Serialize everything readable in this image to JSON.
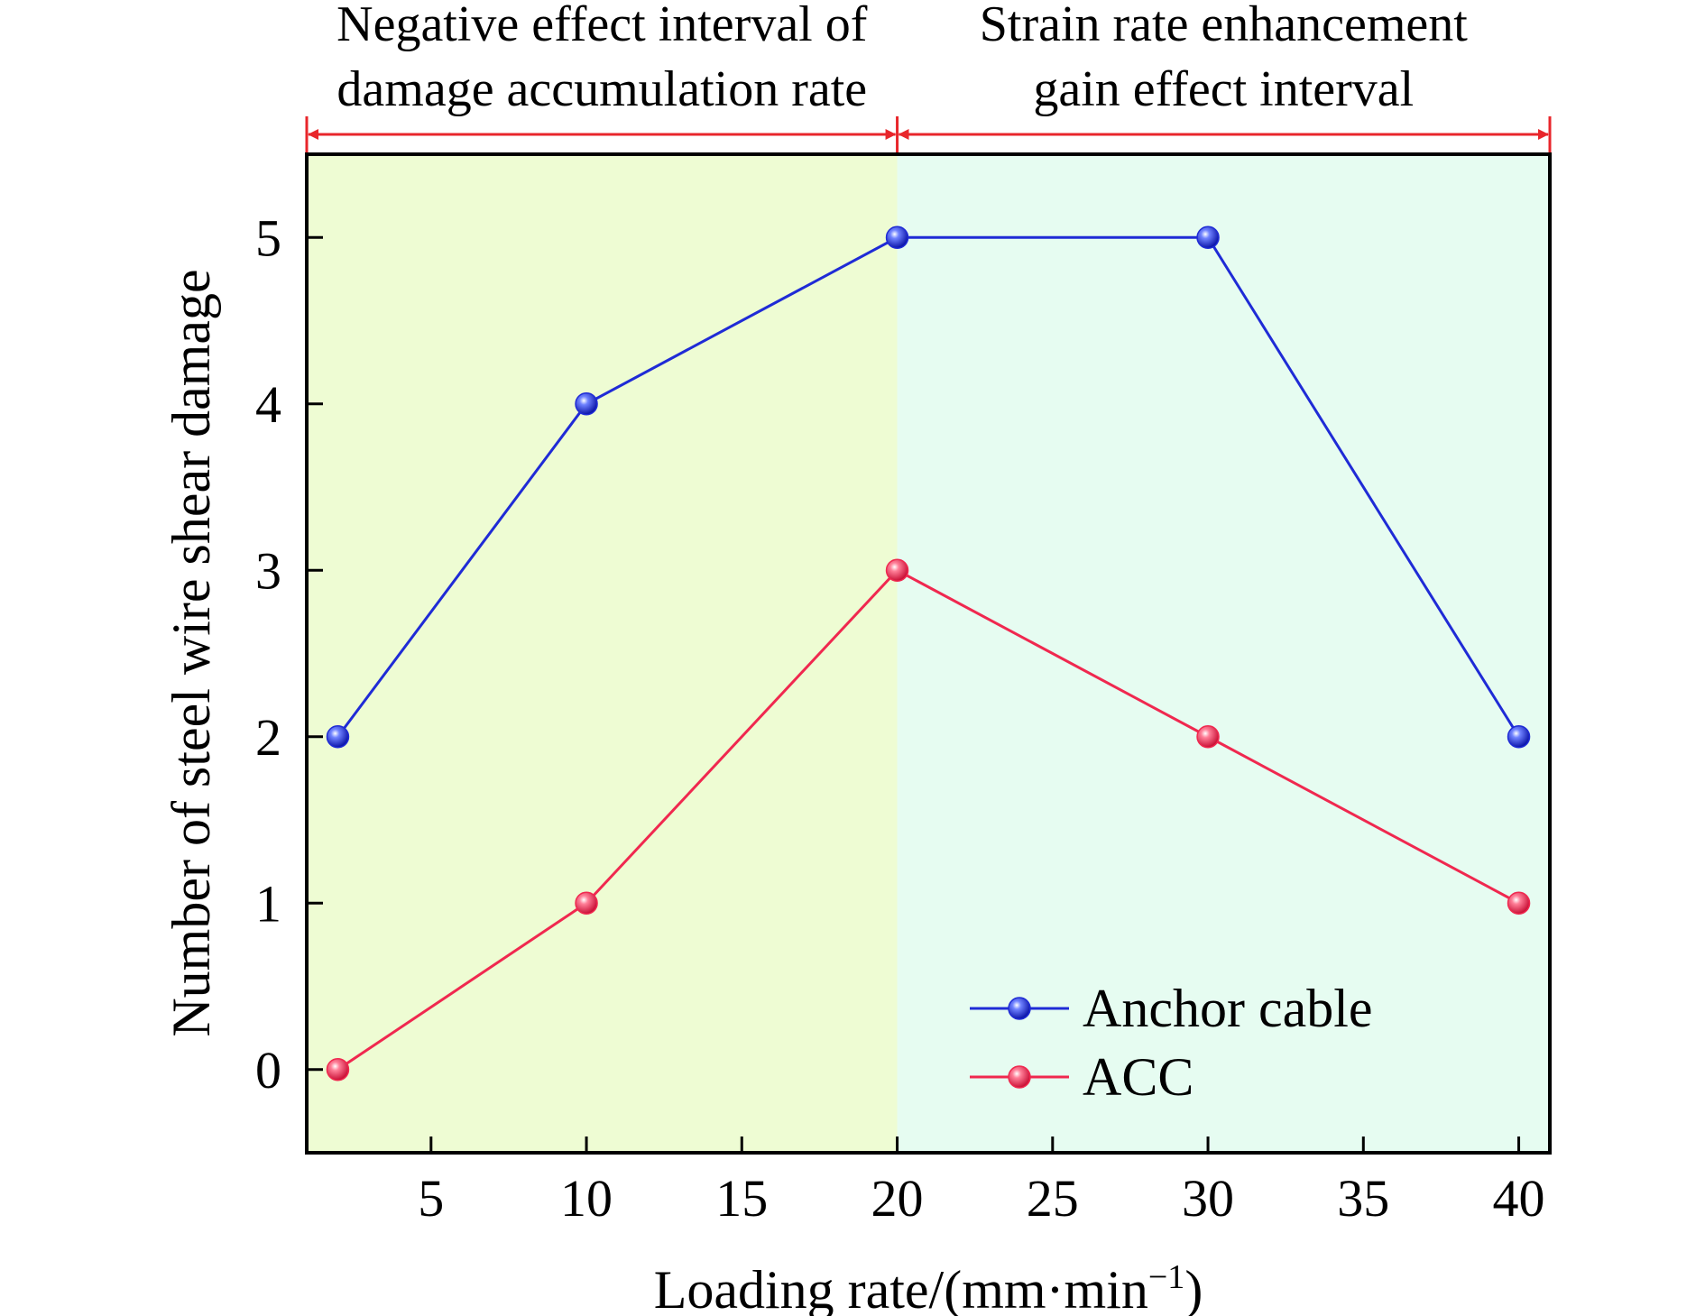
{
  "chart_data": {
    "type": "line",
    "xlabel": "Loading rate/(mm·min",
    "xlabel_sup": "−1",
    "xlabel_end": ")",
    "ylabel": "Number of steel wire shear damage",
    "xlim": [
      1,
      41
    ],
    "ylim": [
      -0.5,
      5.5
    ],
    "xticks": [
      5,
      10,
      15,
      20,
      25,
      30,
      35,
      40
    ],
    "yticks": [
      0,
      1,
      2,
      3,
      4,
      5
    ],
    "x": [
      2,
      10,
      20,
      30,
      40
    ],
    "series": [
      {
        "name": "Anchor cable",
        "values": [
          2,
          4,
          5,
          5,
          2
        ],
        "color": "#1f2bd6"
      },
      {
        "name": "ACC",
        "values": [
          0,
          1,
          3,
          2,
          1
        ],
        "color": "#f0284f"
      }
    ],
    "regions": [
      {
        "label_lines": [
          "Negative effect interval of",
          "damage accumulation rate"
        ],
        "x_range": [
          1,
          20
        ],
        "fill": "#eefcd3"
      },
      {
        "label_lines": [
          "Strain rate enhancement",
          "gain effect interval"
        ],
        "x_range": [
          20,
          41
        ],
        "fill": "#e6fcf1"
      }
    ],
    "interval_arrow_color": "#e8262b",
    "legend_position": "bottom-right",
    "grid": false
  }
}
